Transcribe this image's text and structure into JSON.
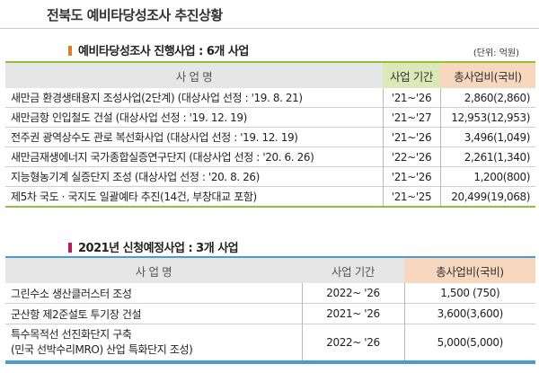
{
  "title": "전북도 예비타당성조사 추진상황",
  "section1": {
    "heading": "예비타당성조사 진행사업 : 6개 사업",
    "mark_color": "#e07b2a",
    "unit": "(단위: 억원)",
    "headers": {
      "name": "사 업 명",
      "period": "사업 기간",
      "cost": "총사업비(국비)"
    },
    "rows": [
      {
        "name": "새만금 환경생태용지 조성사업(2단계) (대상사업 선정 : '19. 8. 21)",
        "period": "'21~'26",
        "cost": "2,860(2,860)"
      },
      {
        "name": "새만금항 인입철도 건설 (대상사업 선정 : '19. 12. 19)",
        "period": "'21~'27",
        "cost": "12,953(12,953)"
      },
      {
        "name": "전주권 광역상수도 관로 복선화사업 (대상사업 선정 : '19. 12. 19)",
        "period": "'21~'26",
        "cost": "3,496(1,049)"
      },
      {
        "name": "새만금재생에너지 국가종합실증연구단지 (대상사업 선정 : '20. 6. 26)",
        "period": "'22~'26",
        "cost": "2,261(1,340)"
      },
      {
        "name": "지능형농기계 실증단지 조성 (대상사업 선정 : '20. 8. 26)",
        "period": "'21~'26",
        "cost": "1,200(800)"
      },
      {
        "name": "제5차 국도 · 국지도 일괄예타 추진(14건, 부창대교 포함)",
        "period": "'21~'25",
        "cost": "20,499(19,068)"
      }
    ]
  },
  "section2": {
    "heading": "2021년 신청예정사업 : 3개 사업",
    "mark_color": "#c2185b",
    "headers": {
      "name": "사 업 명",
      "period": "사업 기간",
      "cost": "총사업비(국비)"
    },
    "rows": [
      {
        "name": "그린수소 생산클러스터 조성",
        "name2": "",
        "period": "2022~ '26",
        "cost": "1,500  (750)"
      },
      {
        "name": "군산항 제2준설토 투기장 건설",
        "name2": "",
        "period": "2021~ '26",
        "cost": "3,600(3,600)"
      },
      {
        "name": "특수목적선 선진화단지 구축",
        "name2": "(민국 선박수리MRO) 산업 특화단지 조성)",
        "period": "2022~ '26",
        "cost": "5,000(5,000)"
      }
    ]
  }
}
